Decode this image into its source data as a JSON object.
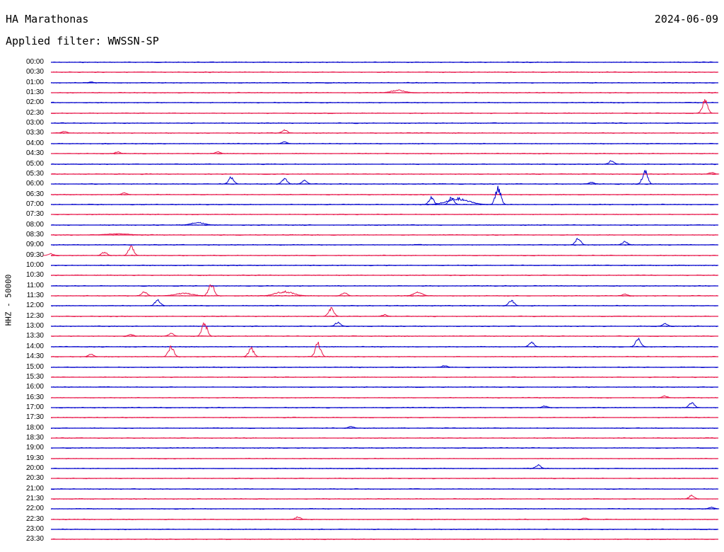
{
  "header": {
    "station": "HA Marathonas",
    "date": "2024-06-09",
    "filter": "Applied filter: WWSSN-SP"
  },
  "axis": {
    "channel_label": "HHZ - 50000"
  },
  "colors": {
    "trace_a": "#0000cc",
    "trace_b": "#e8174a",
    "text": "#000000",
    "background": "#ffffff"
  },
  "rows": [
    {
      "time": "00:00",
      "color": "blue",
      "events": []
    },
    {
      "time": "00:30",
      "color": "red",
      "events": []
    },
    {
      "time": "01:00",
      "color": "blue",
      "events": [
        {
          "x": 0.06,
          "a": 0.1
        }
      ]
    },
    {
      "time": "01:30",
      "color": "red",
      "events": [
        {
          "x": 0.52,
          "a": 0.3,
          "w": 0.03
        }
      ]
    },
    {
      "time": "02:00",
      "color": "blue",
      "events": []
    },
    {
      "time": "02:30",
      "color": "red",
      "events": [
        {
          "x": 0.98,
          "a": 1.6
        }
      ]
    },
    {
      "time": "03:00",
      "color": "blue",
      "events": []
    },
    {
      "time": "03:30",
      "color": "red",
      "events": [
        {
          "x": 0.02,
          "a": 0.2
        },
        {
          "x": 0.35,
          "a": 0.4
        }
      ]
    },
    {
      "time": "04:00",
      "color": "blue",
      "events": [
        {
          "x": 0.35,
          "a": 0.2
        }
      ]
    },
    {
      "time": "04:30",
      "color": "red",
      "events": [
        {
          "x": 0.1,
          "a": 0.2
        },
        {
          "x": 0.25,
          "a": 0.2
        }
      ]
    },
    {
      "time": "05:00",
      "color": "blue",
      "events": [
        {
          "x": 0.84,
          "a": 0.4
        }
      ]
    },
    {
      "time": "05:30",
      "color": "red",
      "events": [
        {
          "x": 0.99,
          "a": 0.2
        }
      ]
    },
    {
      "time": "06:00",
      "color": "blue",
      "events": [
        {
          "x": 0.27,
          "a": 0.8
        },
        {
          "x": 0.35,
          "a": 0.6
        },
        {
          "x": 0.38,
          "a": 0.4
        },
        {
          "x": 0.81,
          "a": 0.2
        },
        {
          "x": 0.89,
          "a": 1.5
        }
      ]
    },
    {
      "time": "06:30",
      "color": "red",
      "events": [
        {
          "x": 0.11,
          "a": 0.2
        }
      ]
    },
    {
      "time": "07:00",
      "color": "blue",
      "events": [
        {
          "x": 0.57,
          "a": 0.8
        },
        {
          "x": 0.6,
          "a": 0.8
        },
        {
          "x": 0.61,
          "a": 0.7,
          "w": 0.05
        },
        {
          "x": 0.67,
          "a": 2.0
        }
      ]
    },
    {
      "time": "07:30",
      "color": "red",
      "events": []
    },
    {
      "time": "08:00",
      "color": "blue",
      "events": [
        {
          "x": 0.22,
          "a": 0.3,
          "w": 0.03
        }
      ]
    },
    {
      "time": "08:30",
      "color": "red",
      "events": [
        {
          "x": 0.1,
          "a": 0.15,
          "w": 0.05
        }
      ]
    },
    {
      "time": "09:00",
      "color": "blue",
      "events": [
        {
          "x": 0.79,
          "a": 0.8
        },
        {
          "x": 0.86,
          "a": 0.4
        }
      ]
    },
    {
      "time": "09:30",
      "color": "red",
      "events": [
        {
          "x": 0.0,
          "a": 0.2
        },
        {
          "x": 0.08,
          "a": 0.4
        },
        {
          "x": 0.12,
          "a": 1.0
        }
      ]
    },
    {
      "time": "10:00",
      "color": "blue",
      "events": []
    },
    {
      "time": "10:30",
      "color": "red",
      "events": []
    },
    {
      "time": "11:00",
      "color": "blue",
      "events": []
    },
    {
      "time": "11:30",
      "color": "red",
      "events": [
        {
          "x": 0.14,
          "a": 0.5
        },
        {
          "x": 0.2,
          "a": 0.3,
          "w": 0.04
        },
        {
          "x": 0.24,
          "a": 1.5
        },
        {
          "x": 0.35,
          "a": 0.5,
          "w": 0.04
        },
        {
          "x": 0.44,
          "a": 0.4
        },
        {
          "x": 0.55,
          "a": 0.4,
          "w": 0.02
        },
        {
          "x": 0.86,
          "a": 0.2
        }
      ]
    },
    {
      "time": "12:00",
      "color": "blue",
      "events": [
        {
          "x": 0.16,
          "a": 0.7
        },
        {
          "x": 0.69,
          "a": 0.6
        }
      ]
    },
    {
      "time": "12:30",
      "color": "red",
      "events": [
        {
          "x": 0.42,
          "a": 1.0
        },
        {
          "x": 0.5,
          "a": 0.2
        }
      ]
    },
    {
      "time": "13:00",
      "color": "blue",
      "events": [
        {
          "x": 0.43,
          "a": 0.5
        },
        {
          "x": 0.92,
          "a": 0.3
        }
      ]
    },
    {
      "time": "13:30",
      "color": "red",
      "events": [
        {
          "x": 0.12,
          "a": 0.2
        },
        {
          "x": 0.18,
          "a": 0.3
        },
        {
          "x": 0.23,
          "a": 1.6
        }
      ]
    },
    {
      "time": "14:00",
      "color": "blue",
      "events": [
        {
          "x": 0.72,
          "a": 0.5
        },
        {
          "x": 0.88,
          "a": 1.0
        }
      ]
    },
    {
      "time": "14:30",
      "color": "red",
      "events": [
        {
          "x": 0.06,
          "a": 0.3
        },
        {
          "x": 0.18,
          "a": 1.2
        },
        {
          "x": 0.3,
          "a": 1.0
        },
        {
          "x": 0.4,
          "a": 1.6
        }
      ]
    },
    {
      "time": "15:00",
      "color": "blue",
      "events": [
        {
          "x": 0.59,
          "a": 0.2
        }
      ]
    },
    {
      "time": "15:30",
      "color": "red",
      "events": []
    },
    {
      "time": "16:00",
      "color": "blue",
      "events": []
    },
    {
      "time": "16:30",
      "color": "red",
      "events": [
        {
          "x": 0.92,
          "a": 0.2
        }
      ]
    },
    {
      "time": "17:00",
      "color": "blue",
      "events": [
        {
          "x": 0.74,
          "a": 0.2
        },
        {
          "x": 0.96,
          "a": 0.6
        }
      ]
    },
    {
      "time": "17:30",
      "color": "red",
      "events": []
    },
    {
      "time": "18:00",
      "color": "blue",
      "events": [
        {
          "x": 0.45,
          "a": 0.2
        }
      ]
    },
    {
      "time": "18:30",
      "color": "red",
      "events": []
    },
    {
      "time": "19:00",
      "color": "blue",
      "events": []
    },
    {
      "time": "19:30",
      "color": "red",
      "events": []
    },
    {
      "time": "20:00",
      "color": "blue",
      "events": [
        {
          "x": 0.73,
          "a": 0.4
        }
      ]
    },
    {
      "time": "20:30",
      "color": "red",
      "events": []
    },
    {
      "time": "21:00",
      "color": "blue",
      "events": []
    },
    {
      "time": "21:30",
      "color": "red",
      "events": [
        {
          "x": 0.96,
          "a": 0.4
        }
      ]
    },
    {
      "time": "22:00",
      "color": "blue",
      "events": [
        {
          "x": 0.99,
          "a": 0.2
        }
      ]
    },
    {
      "time": "22:30",
      "color": "red",
      "events": [
        {
          "x": 0.37,
          "a": 0.3
        },
        {
          "x": 0.8,
          "a": 0.2
        }
      ]
    },
    {
      "time": "23:00",
      "color": "blue",
      "events": []
    },
    {
      "time": "23:30",
      "color": "red",
      "events": []
    }
  ]
}
